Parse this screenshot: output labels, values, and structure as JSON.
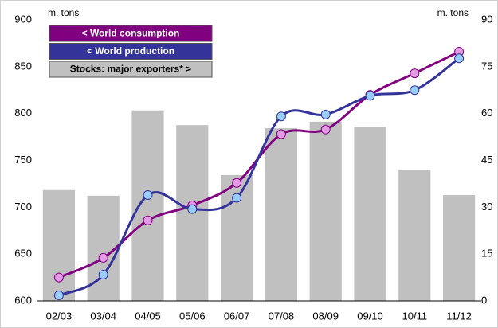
{
  "chart_data": {
    "type": "bar",
    "categories": [
      "02/03",
      "03/04",
      "04/05",
      "05/06",
      "06/07",
      "07/08",
      "08/09",
      "09/10",
      "10/11",
      "11/12"
    ],
    "ylabel": "m. tons",
    "y2label": "m. tons",
    "ylim": [
      600,
      900
    ],
    "yticks": [
      600,
      650,
      700,
      750,
      800,
      850,
      900
    ],
    "y2lim": [
      0,
      90
    ],
    "y2ticks": [
      0,
      15,
      30,
      45,
      60,
      75,
      90
    ],
    "series": [
      {
        "name": "< World consumption",
        "type": "line",
        "color": "#800080",
        "marker_color": "#e39be3",
        "values": [
          625,
          646,
          686,
          702,
          726,
          778,
          783,
          820,
          843,
          866
        ]
      },
      {
        "name": "< World production",
        "type": "line",
        "color": "#333399",
        "marker_color": "#99ccff",
        "values": [
          606,
          628,
          713,
          698,
          710,
          797,
          799,
          819,
          825,
          859
        ]
      },
      {
        "name": "Stocks: major exporters* >",
        "type": "bar",
        "axis": "y2",
        "color": "#c0c0c0",
        "values": [
          35.5,
          33.7,
          61,
          56.3,
          40.3,
          55.3,
          57.4,
          55.8,
          42,
          33.9
        ]
      }
    ]
  }
}
